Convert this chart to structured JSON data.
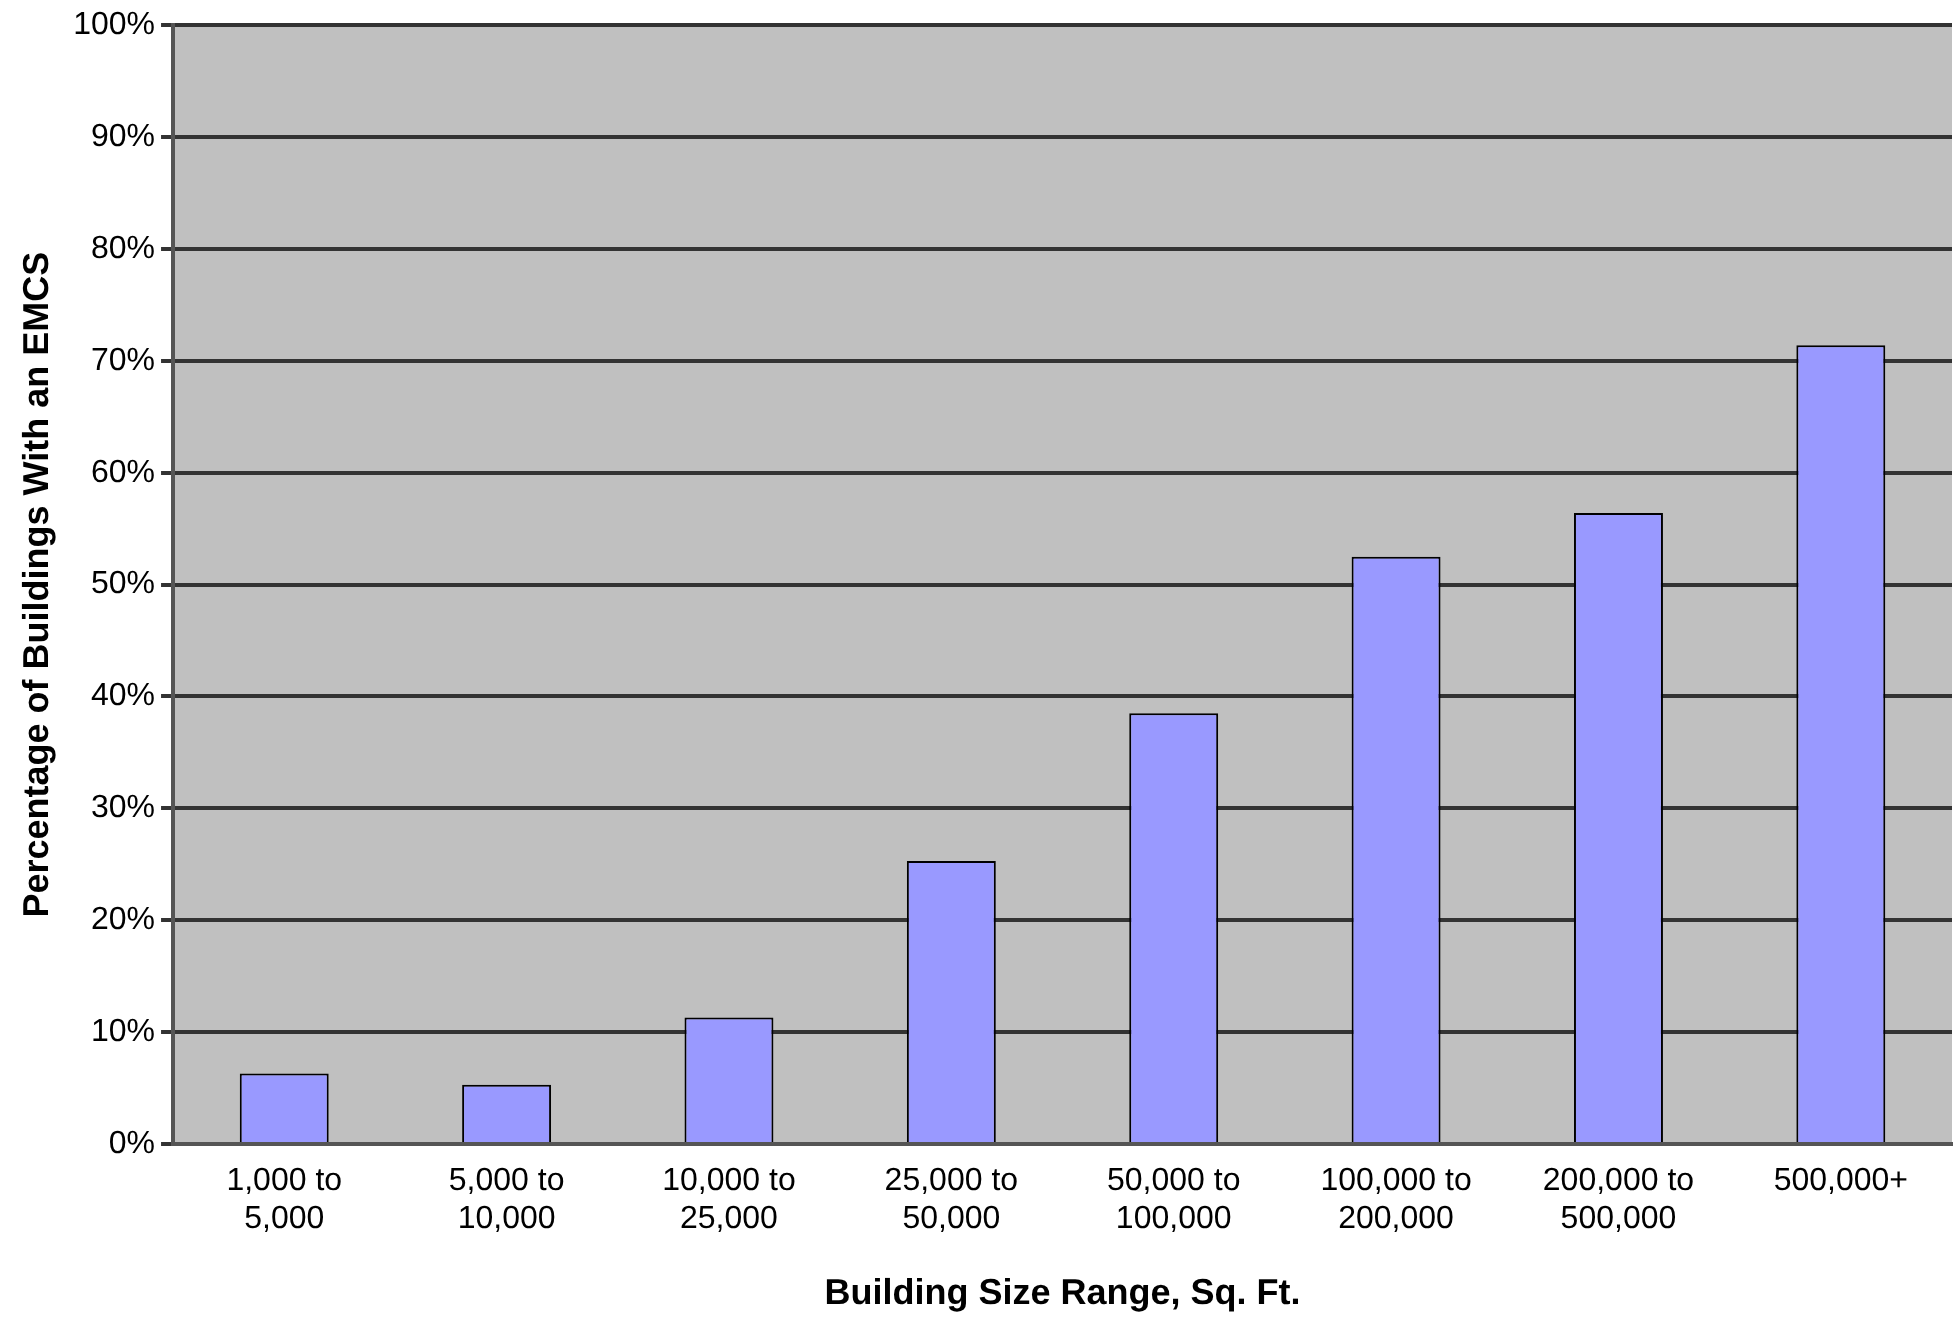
{
  "chart_data": {
    "type": "bar",
    "xlabel": "Building Size Range, Sq. Ft.",
    "ylabel": "Percentage of Buildings With an EMCS",
    "categories": [
      "1,000 to 5,000",
      "5,000 to 10,000",
      "10,000 to 25,000",
      "25,000 to 50,000",
      "50,000 to 100,000",
      "100,000 to 200,000",
      "200,000 to 500,000",
      "500,000+"
    ],
    "values": [
      6.3,
      5.3,
      11.3,
      25.3,
      38.5,
      52.5,
      56.4,
      71.4
    ],
    "color": "#9999ff",
    "ylim": [
      0,
      100
    ],
    "yticks": [
      {
        "value": 0,
        "label": "0%"
      },
      {
        "value": 10,
        "label": "10%"
      },
      {
        "value": 20,
        "label": "20%"
      },
      {
        "value": 30,
        "label": "30%"
      },
      {
        "value": 40,
        "label": "40%"
      },
      {
        "value": 50,
        "label": "50%"
      },
      {
        "value": 60,
        "label": "60%"
      },
      {
        "value": 70,
        "label": "70%"
      },
      {
        "value": 80,
        "label": "80%"
      },
      {
        "value": 90,
        "label": "90%"
      },
      {
        "value": 100,
        "label": "100%"
      }
    ],
    "grid": "y",
    "legend": false
  }
}
